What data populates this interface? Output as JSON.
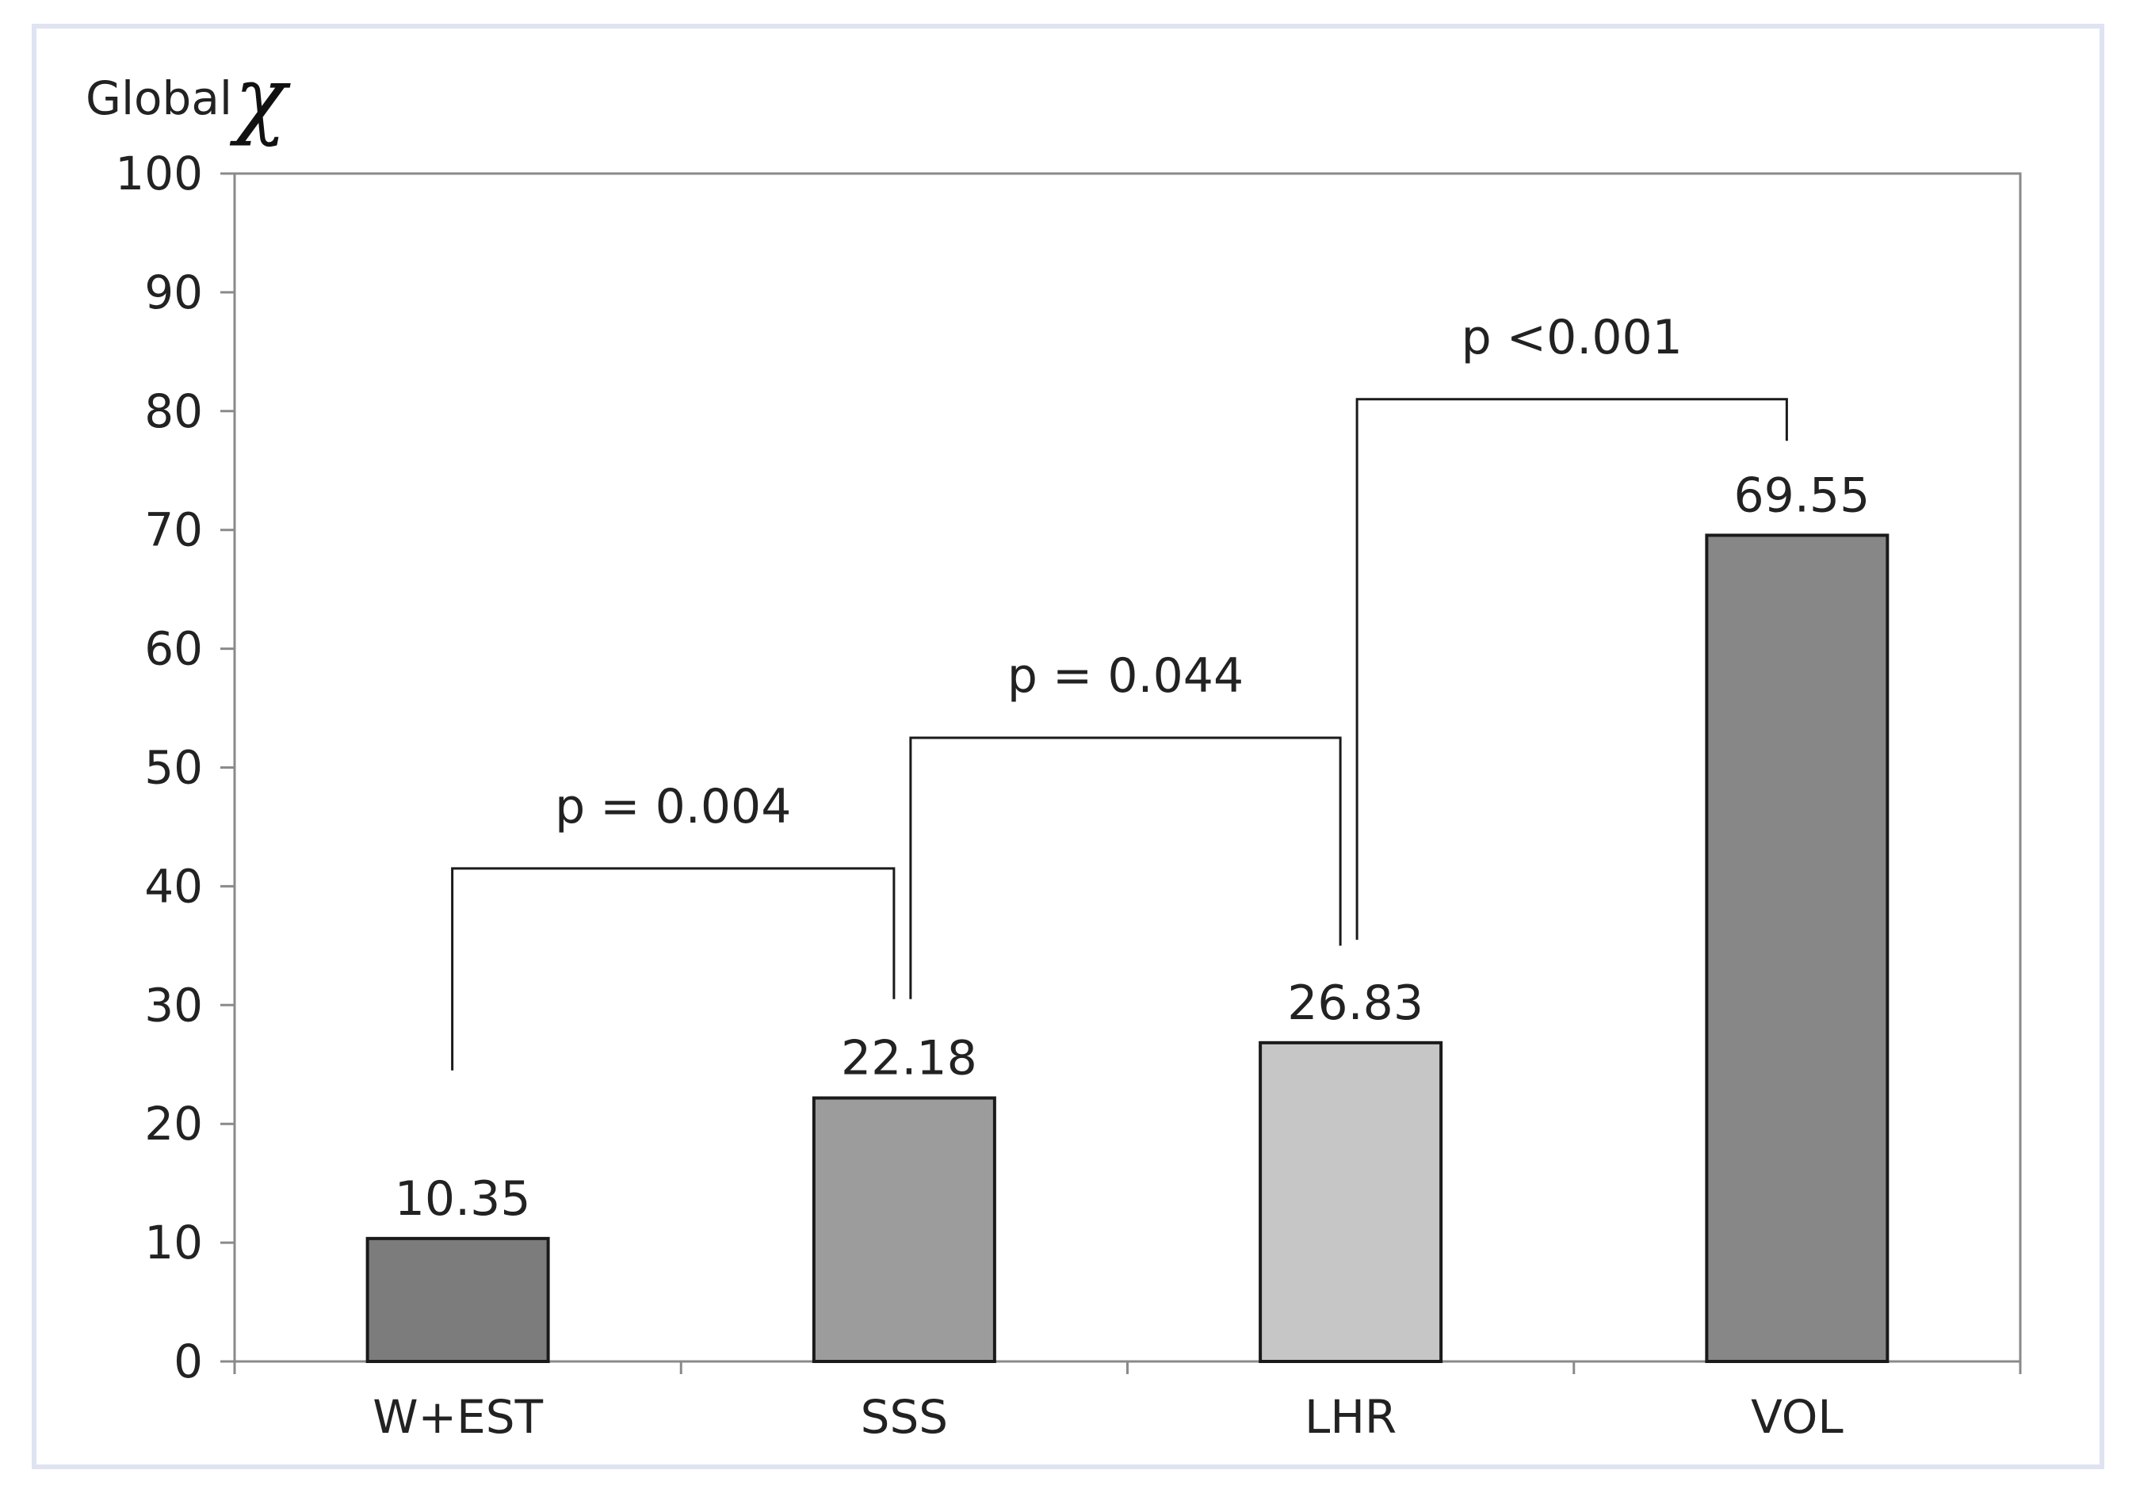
{
  "chart_data": {
    "type": "bar",
    "ylabel": "Global",
    "ylabel_symbol": "χ",
    "categories": [
      "W+EST",
      "SSS",
      "LHR",
      "VOL"
    ],
    "values": [
      10.35,
      22.18,
      26.83,
      69.55
    ],
    "data_labels": [
      "10.35",
      "22.18",
      "26.83",
      "69.55"
    ],
    "bar_colors": [
      "#7c7c7c",
      "#9c9c9c",
      "#c6c6c6",
      "#878787"
    ],
    "ylim": [
      0,
      100
    ],
    "yticks": [
      "0",
      "10",
      "20",
      "30",
      "40",
      "50",
      "60",
      "70",
      "80",
      "90",
      "100"
    ],
    "grid": false,
    "annotations": [
      {
        "from": 0,
        "to": 1,
        "label": "p = 0.004",
        "level": 41.5,
        "drop_left": 24.5,
        "drop_right": 30.5
      },
      {
        "from": 1,
        "to": 2,
        "label": "p = 0.044",
        "level": 52.5,
        "drop_left": 30.5,
        "drop_right": 35.0
      },
      {
        "from": 2,
        "to": 3,
        "label": "p <0.001",
        "level": 81.0,
        "drop_left": 35.5,
        "drop_right": 77.5
      }
    ]
  },
  "colors": {
    "frame_border": "#dfe3f2",
    "axis": "#8a8a8a",
    "bar_stroke": "#1a1a1a",
    "bracket": "#1a1a1a"
  }
}
